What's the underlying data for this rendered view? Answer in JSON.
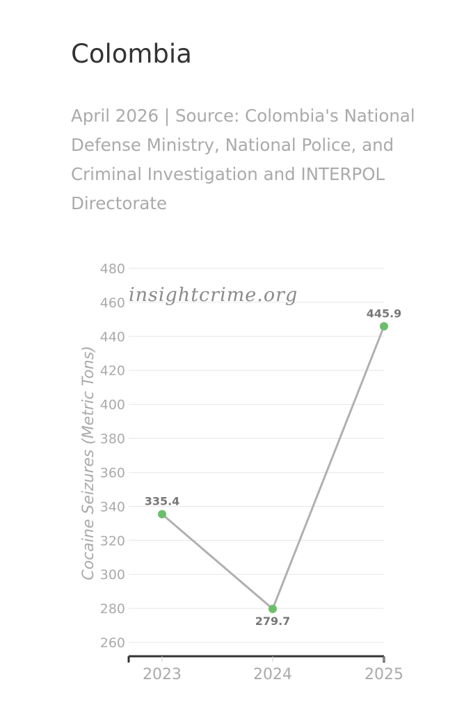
{
  "header": {
    "title": "Colombia",
    "subtitle": "April 2026 | Source: Colombia's National Defense Ministry, National Police, and Criminal Investigation and INTERPOL Directorate"
  },
  "watermark": "insightcrime.org",
  "colors": {
    "line": "#b0b0b0",
    "point": "#6cbf6a",
    "grid": "#e6e6e6",
    "axis": "#333333"
  },
  "chart_data": {
    "type": "line",
    "categories": [
      "2023",
      "2024",
      "2025"
    ],
    "values": [
      335.4,
      279.7,
      445.9
    ],
    "labels": [
      "335.4",
      "279.7",
      "445.9"
    ],
    "ylabel": "Cocaine Seizures (Metric Tons)",
    "ylim": [
      260,
      480
    ],
    "yticks": [
      "260",
      "280",
      "300",
      "320",
      "340",
      "360",
      "380",
      "400",
      "420",
      "440",
      "460",
      "480"
    ],
    "grid": true
  }
}
